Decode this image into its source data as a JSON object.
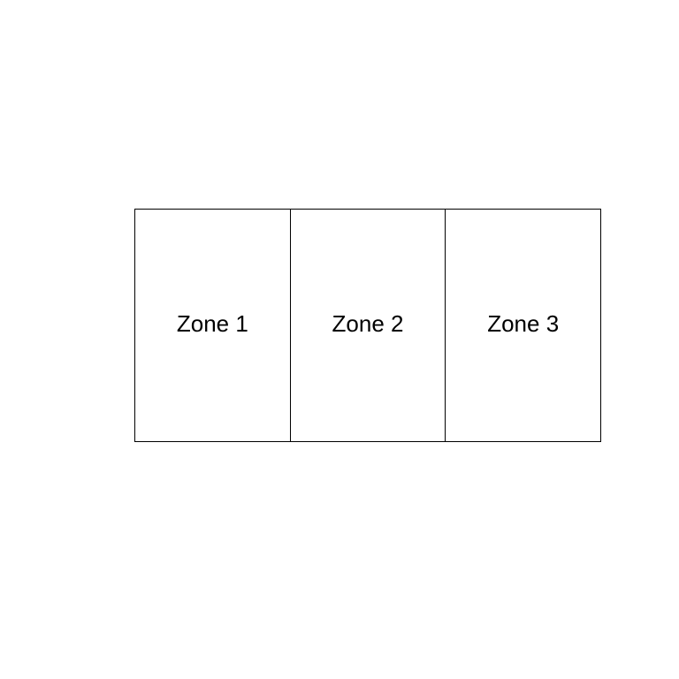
{
  "diagram": {
    "zones": [
      {
        "label": "Zone 1"
      },
      {
        "label": "Zone 2"
      },
      {
        "label": "Zone 3"
      }
    ],
    "colors": {
      "background": "#ffffff",
      "stroke": "#000000",
      "text": "#000000"
    }
  }
}
